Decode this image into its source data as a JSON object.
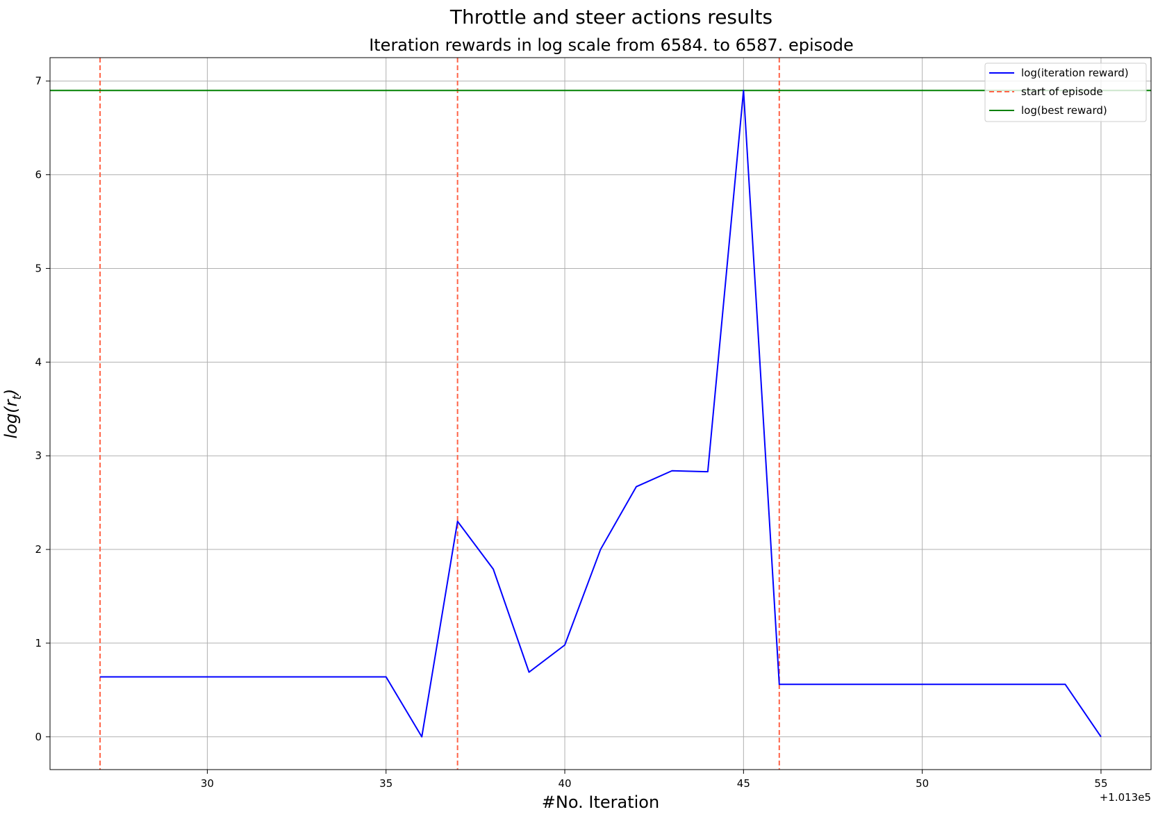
{
  "chart_data": {
    "type": "line",
    "title": "Throttle and steer actions results",
    "subtitle": "Iteration rewards in log scale from 6584. to 6587. episode",
    "xlabel": "#No. Iteration",
    "ylabel": "log(r_t)",
    "ylabel_base": "log(r",
    "ylabel_sub": "t",
    "ylabel_close": ")",
    "x_offset_label": "+1.013e5",
    "xlim": [
      25.6,
      56.4
    ],
    "ylim": [
      -0.35,
      7.25
    ],
    "x_ticks": [
      30,
      35,
      40,
      45,
      50,
      55
    ],
    "x_tick_labels": [
      "30",
      "35",
      "40",
      "45",
      "50",
      "55"
    ],
    "y_ticks": [
      0,
      1,
      2,
      3,
      4,
      5,
      6,
      7
    ],
    "y_tick_labels": [
      "0",
      "1",
      "2",
      "3",
      "4",
      "5",
      "6",
      "7"
    ],
    "grid": true,
    "legend_position": "top-right",
    "series": [
      {
        "name": "log(iteration reward)",
        "color": "#0000ff",
        "style": "solid",
        "x": [
          27,
          28,
          29,
          30,
          31,
          32,
          33,
          34,
          35,
          36,
          37,
          38,
          39,
          40,
          41,
          42,
          43,
          44,
          45,
          46,
          47,
          48,
          49,
          50,
          51,
          52,
          53,
          54,
          55
        ],
        "y": [
          0.64,
          0.64,
          0.64,
          0.64,
          0.64,
          0.64,
          0.64,
          0.64,
          0.64,
          0.0,
          2.3,
          1.79,
          0.69,
          0.98,
          2.0,
          2.67,
          2.84,
          2.83,
          6.9,
          0.56,
          0.56,
          0.56,
          0.56,
          0.56,
          0.56,
          0.56,
          0.56,
          0.56,
          0.0
        ]
      }
    ],
    "episode_starts": {
      "name": "start of episode",
      "color": "#ff6347",
      "style": "dashed",
      "x": [
        27,
        37,
        46
      ]
    },
    "best_reward": {
      "name": "log(best reward)",
      "color": "#008000",
      "style": "solid",
      "y": 6.9
    }
  }
}
